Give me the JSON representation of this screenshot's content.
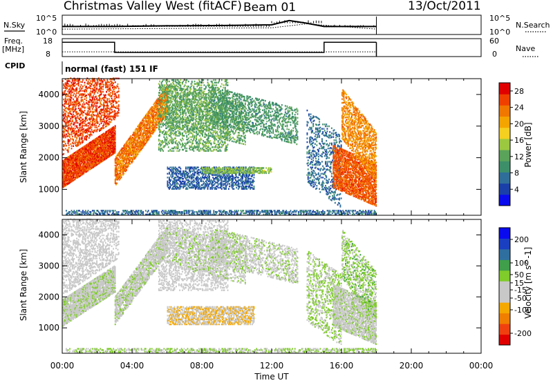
{
  "header": {
    "station": "Christmas Valley West (fitACF)",
    "beam": "Beam 01",
    "date": "13/Oct/2011"
  },
  "left_labels": {
    "nsky": "N.Sky",
    "freq_line1": "Freq.",
    "freq_line2": "[MHz]",
    "cpid": "CPID"
  },
  "right_labels": {
    "nsearch": "N.Search",
    "nave": "Nave"
  },
  "axis_ticks": {
    "noise_top": "10^5",
    "noise_bottom": "10^0",
    "freq_top": "18",
    "freq_bottom": "8",
    "nave_top": "60",
    "nave_bottom": "0"
  },
  "cpid_text": "normal (fast) 151 IF",
  "colors": {
    "power": [
      "#0a0aee",
      "#1a3fa8",
      "#2f6e9a",
      "#3d8f6a",
      "#5aa35a",
      "#9cc840",
      "#f5d020",
      "#f5a500",
      "#f07800",
      "#f04000",
      "#e00000"
    ],
    "velocity": [
      "#e00000",
      "#f04010",
      "#f07e00",
      "#f5a800",
      "#c8c8c8",
      "#c8c8c8",
      "#7fcc2a",
      "#3f9f4a",
      "#2f6fa0",
      "#1a3fc0",
      "#0a0aee"
    ]
  },
  "chart_data": [
    {
      "type": "heatmap",
      "title": "Power",
      "xlabel": "Time UT",
      "ylabel": "Slant Range [km]",
      "x_ticks": [
        "00:00",
        "04:00",
        "08:00",
        "12:00",
        "16:00",
        "20:00",
        "00:00"
      ],
      "xlim_hours": [
        0,
        24
      ],
      "y_ticks": [
        1000,
        2000,
        3000,
        4000
      ],
      "ylim_km": [
        180,
        4500
      ],
      "colorbar": {
        "label": "Power [dB]",
        "ticks": [
          4,
          8,
          12,
          16,
          20,
          24,
          28
        ],
        "range": [
          0,
          30
        ]
      },
      "bands": [
        {
          "t": [
            0.0,
            3.0
          ],
          "r": [
            1050,
            1900
          ],
          "rise": 1100,
          "v": 27,
          "d": 0.9
        },
        {
          "t": [
            0.0,
            3.2
          ],
          "r": [
            2050,
            4450
          ],
          "rise": 1200,
          "v": 27,
          "d": 0.35
        },
        {
          "t": [
            3.0,
            6.0
          ],
          "r": [
            1100,
            2000
          ],
          "rise": 2300,
          "v": 24,
          "d": 0.75
        },
        {
          "t": [
            5.5,
            9.5
          ],
          "r": [
            2200,
            4450
          ],
          "rise": 0,
          "v": 12,
          "d": 0.3
        },
        {
          "t": [
            6.0,
            10.5
          ],
          "r": [
            3000,
            4300
          ],
          "rise": -600,
          "v": 12,
          "d": 0.3
        },
        {
          "t": [
            8.5,
            13.5
          ],
          "r": [
            3100,
            4250
          ],
          "rise": -700,
          "v": 10,
          "d": 0.35
        },
        {
          "t": [
            6.0,
            11.0
          ],
          "r": [
            1000,
            1700
          ],
          "rise": 0,
          "v": 5,
          "d": 0.45
        },
        {
          "t": [
            8.0,
            12.0
          ],
          "r": [
            1500,
            1700
          ],
          "rise": 0,
          "v": 14,
          "d": 0.6
        },
        {
          "t": [
            14.0,
            16.0
          ],
          "r": [
            1200,
            3500
          ],
          "rise": -800,
          "v": 6,
          "d": 0.25
        },
        {
          "t": [
            15.5,
            18.0
          ],
          "r": [
            1050,
            2400
          ],
          "rise": -600,
          "v": 26,
          "d": 0.7
        },
        {
          "t": [
            16.0,
            18.0
          ],
          "r": [
            2600,
            4200
          ],
          "rise": -1400,
          "v": 23,
          "d": 0.5
        },
        {
          "t": [
            0.2,
            18.0
          ],
          "r": [
            190,
            340
          ],
          "rise": 0,
          "v": 6,
          "d": 0.45
        }
      ]
    },
    {
      "type": "heatmap",
      "title": "Velocity",
      "xlabel": "Time UT",
      "ylabel": "Slant Range [km]",
      "x_ticks": [
        "00:00",
        "04:00",
        "08:00",
        "12:00",
        "16:00",
        "20:00",
        "00:00"
      ],
      "xlim_hours": [
        0,
        24
      ],
      "y_ticks": [
        1000,
        2000,
        3000,
        4000
      ],
      "ylim_km": [
        180,
        4500
      ],
      "colorbar": {
        "label": "Velocity [m s^-1]",
        "ticks": [
          200,
          100,
          50,
          15,
          -15,
          -50,
          -100,
          -200
        ],
        "range": [
          -250,
          250
        ]
      },
      "bands": [
        {
          "t": [
            0.0,
            3.0
          ],
          "r": [
            1050,
            1900
          ],
          "rise": 1100,
          "v": 0,
          "d": 0.85
        },
        {
          "t": [
            0.0,
            3.2
          ],
          "r": [
            2050,
            4450
          ],
          "rise": 1200,
          "v": -30,
          "d": 0.35
        },
        {
          "t": [
            3.0,
            6.0
          ],
          "r": [
            1100,
            2000
          ],
          "rise": 2300,
          "v": 0,
          "d": 0.75
        },
        {
          "t": [
            5.5,
            9.5
          ],
          "r": [
            2200,
            4450
          ],
          "rise": 0,
          "v": -20,
          "d": 0.3
        },
        {
          "t": [
            6.0,
            10.5
          ],
          "r": [
            3000,
            4300
          ],
          "rise": -600,
          "v": 0,
          "d": 0.3
        },
        {
          "t": [
            8.5,
            13.5
          ],
          "r": [
            3100,
            4250
          ],
          "rise": -700,
          "v": 0,
          "d": 0.35
        },
        {
          "t": [
            6.0,
            11.0
          ],
          "r": [
            1100,
            1700
          ],
          "rise": 0,
          "v": -70,
          "d": 0.6
        },
        {
          "t": [
            14.0,
            16.0
          ],
          "r": [
            1200,
            3500
          ],
          "rise": -800,
          "v": 30,
          "d": 0.3
        },
        {
          "t": [
            15.5,
            18.0
          ],
          "r": [
            1050,
            2400
          ],
          "rise": -600,
          "v": 0,
          "d": 0.7
        },
        {
          "t": [
            16.0,
            18.0
          ],
          "r": [
            2600,
            4200
          ],
          "rise": -1400,
          "v": 40,
          "d": 0.4
        },
        {
          "t": [
            0.2,
            18.0
          ],
          "r": [
            190,
            340
          ],
          "rise": 0,
          "v": 25,
          "d": 0.45
        }
      ]
    },
    {
      "type": "line",
      "title": "N.Sky / N.Search",
      "ylim_log10": [
        0,
        5
      ],
      "series": [
        {
          "t": [
            0,
            3,
            6,
            9,
            12,
            13,
            14,
            15,
            16,
            18
          ],
          "values_log10": [
            2.0,
            2.0,
            2.2,
            2.3,
            2.5,
            3.8,
            3.0,
            2.0,
            2.0,
            2.0
          ]
        },
        {
          "t": [
            0,
            6,
            12,
            14,
            18
          ],
          "values_log10": [
            1.2,
            1.4,
            1.6,
            2.8,
            1.2
          ]
        }
      ]
    },
    {
      "type": "line",
      "title": "Freq. / Nave",
      "series": [
        {
          "t": [
            0,
            3,
            3,
            15,
            15,
            18
          ],
          "values_mhz": [
            16.0,
            16.0,
            10.3,
            10.3,
            16.0,
            16.0
          ]
        },
        {
          "t": [
            0,
            18
          ],
          "values_nave": [
            16,
            16
          ]
        }
      ]
    }
  ]
}
